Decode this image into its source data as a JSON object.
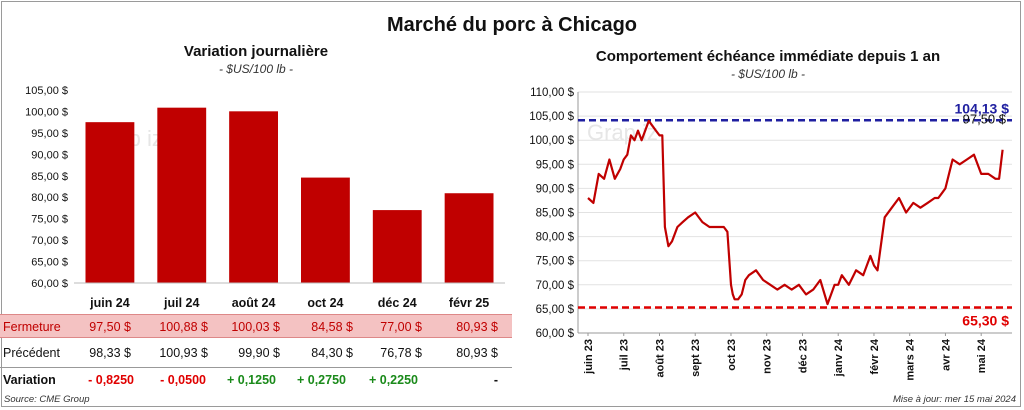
{
  "title": "Marché du porc à Chicago",
  "source": "Source: CME Group",
  "update": "Mise à jour: mer 15 mai 2024",
  "colors": {
    "bar": "#c00000",
    "line": "#c00000",
    "ref_high": "#1f1fa0",
    "ref_low": "#e00000"
  },
  "watermark": "Grap iz",
  "chart_data": [
    {
      "type": "bar",
      "title": "Variation  journalière",
      "subtitle": "- $US/100 lb -",
      "categories": [
        "juin 24",
        "juil 24",
        "août 24",
        "oct 24",
        "déc 24",
        "févr 25"
      ],
      "values": [
        97.5,
        100.88,
        100.03,
        84.58,
        77.0,
        80.93
      ],
      "ylim": [
        60,
        105
      ],
      "yticks": [
        "60,00 $",
        "65,00 $",
        "70,00 $",
        "75,00 $",
        "80,00 $",
        "85,00 $",
        "90,00 $",
        "95,00 $",
        "100,00 $",
        "105,00 $"
      ],
      "grid": false
    },
    {
      "type": "line",
      "title": "Comportement  échéance immédiate depuis 1 an",
      "subtitle": "- $US/100 lb -",
      "ylim": [
        60,
        110
      ],
      "yticks": [
        "60,00 $",
        "65,00 $",
        "70,00 $",
        "75,00 $",
        "80,00 $",
        "85,00 $",
        "90,00 $",
        "95,00 $",
        "100,00 $",
        "105,00 $",
        "110,00 $"
      ],
      "xticks": [
        "juin 23",
        "juil 23",
        "août 23",
        "sept 23",
        "oct 23",
        "nov 23",
        "déc 23",
        "janv 24",
        "févr 24",
        "mars 24",
        "avr 24",
        "mai 24"
      ],
      "series": [
        {
          "x": [
            0,
            0.15,
            0.3,
            0.45,
            0.6,
            0.75,
            0.9,
            1.0,
            1.1,
            1.2,
            1.3,
            1.4,
            1.5,
            1.6,
            1.7,
            1.8,
            1.9,
            2.0,
            2.08,
            2.15,
            2.25,
            2.35,
            2.5,
            2.65,
            2.8,
            3.0,
            3.2,
            3.4,
            3.6,
            3.8,
            3.9,
            4.0,
            4.05,
            4.1,
            4.2,
            4.3,
            4.4,
            4.5,
            4.7,
            4.9,
            5.1,
            5.3,
            5.5,
            5.7,
            5.9,
            6.1,
            6.3,
            6.5,
            6.7,
            6.9,
            7.0,
            7.1,
            7.3,
            7.5,
            7.7,
            7.9,
            8.0,
            8.1,
            8.3,
            8.5,
            8.7,
            8.9,
            9.1,
            9.3,
            9.5,
            9.7,
            9.8,
            9.9,
            10.0,
            10.1,
            10.2,
            10.4,
            10.6,
            10.8,
            11.0,
            11.2,
            11.4,
            11.5,
            11.6
          ],
          "values": [
            88,
            87,
            93,
            92,
            96,
            92,
            94,
            96,
            97,
            101,
            100,
            102,
            100,
            102,
            104,
            103,
            102,
            101,
            101,
            82,
            78,
            79,
            82,
            83,
            84,
            85,
            83,
            82,
            82,
            82,
            81,
            70,
            68,
            67,
            67,
            68,
            71,
            72,
            73,
            71,
            70,
            69,
            70,
            69,
            70,
            68,
            69,
            71,
            66,
            70,
            70,
            72,
            70,
            73,
            72,
            76,
            74,
            73,
            84,
            86,
            88,
            85,
            87,
            86,
            87,
            88,
            88,
            89,
            90,
            93,
            96,
            95,
            96,
            97,
            93,
            93,
            92,
            92,
            98
          ]
        }
      ],
      "reference_lines": [
        {
          "value": 104.13,
          "label": "104,13 $"
        },
        {
          "value": 65.3,
          "label": "65,30 $"
        }
      ],
      "last_label": "97,50 $"
    }
  ],
  "table": {
    "rows": [
      {
        "label": "Fermeture",
        "values": [
          "97,50",
          "100,88",
          "100,03",
          "84,58",
          "77,00",
          "80,93"
        ],
        "suffix": "$"
      },
      {
        "label": "Précédent",
        "values": [
          "98,33",
          "100,93",
          "99,90",
          "84,30",
          "76,78",
          "80,93"
        ],
        "suffix": "$"
      },
      {
        "label": "Variation",
        "values": [
          "- 0,8250",
          "- 0,0500",
          "+ 0,1250",
          "+ 0,2750",
          "+ 0,2250",
          "-"
        ],
        "colors": [
          "#e00000",
          "#e00000",
          "#1a8a1a",
          "#1a8a1a",
          "#1a8a1a",
          "#111111"
        ]
      }
    ]
  }
}
